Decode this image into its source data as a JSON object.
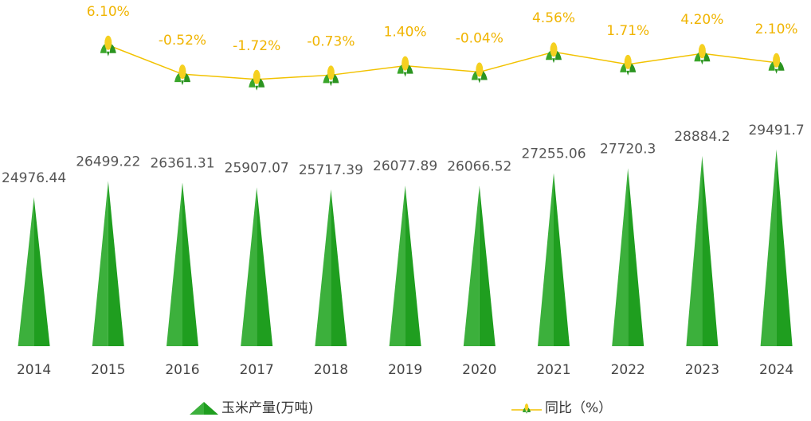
{
  "chart_data": {
    "type": "bar",
    "categories": [
      "2014",
      "2015",
      "2016",
      "2017",
      "2018",
      "2019",
      "2020",
      "2021",
      "2022",
      "2023",
      "2024"
    ],
    "series": [
      {
        "name": "玉米产量(万吨)",
        "type": "bar",
        "color": "#1f9e1f",
        "values": [
          24976.44,
          26499.22,
          26361.31,
          25907.07,
          25717.39,
          26077.89,
          26066.52,
          27255.06,
          27720.3,
          28884.2,
          29491.7
        ]
      },
      {
        "name": "同比（%）",
        "type": "line",
        "axis": "y2",
        "color": "#f2c200",
        "values": [
          null,
          6.1,
          -0.52,
          -1.72,
          -0.73,
          1.4,
          -0.04,
          4.56,
          1.71,
          4.2,
          2.1
        ],
        "value_labels": [
          null,
          "6.10%",
          "-0.52%",
          "-1.72%",
          "-0.73%",
          "1.40%",
          "-0.04%",
          "4.56%",
          "1.71%",
          "4.20%",
          "2.10%"
        ]
      }
    ],
    "ylim": [
      10900,
      30000
    ],
    "y2lim": [
      -5.4,
      14.6
    ]
  }
}
